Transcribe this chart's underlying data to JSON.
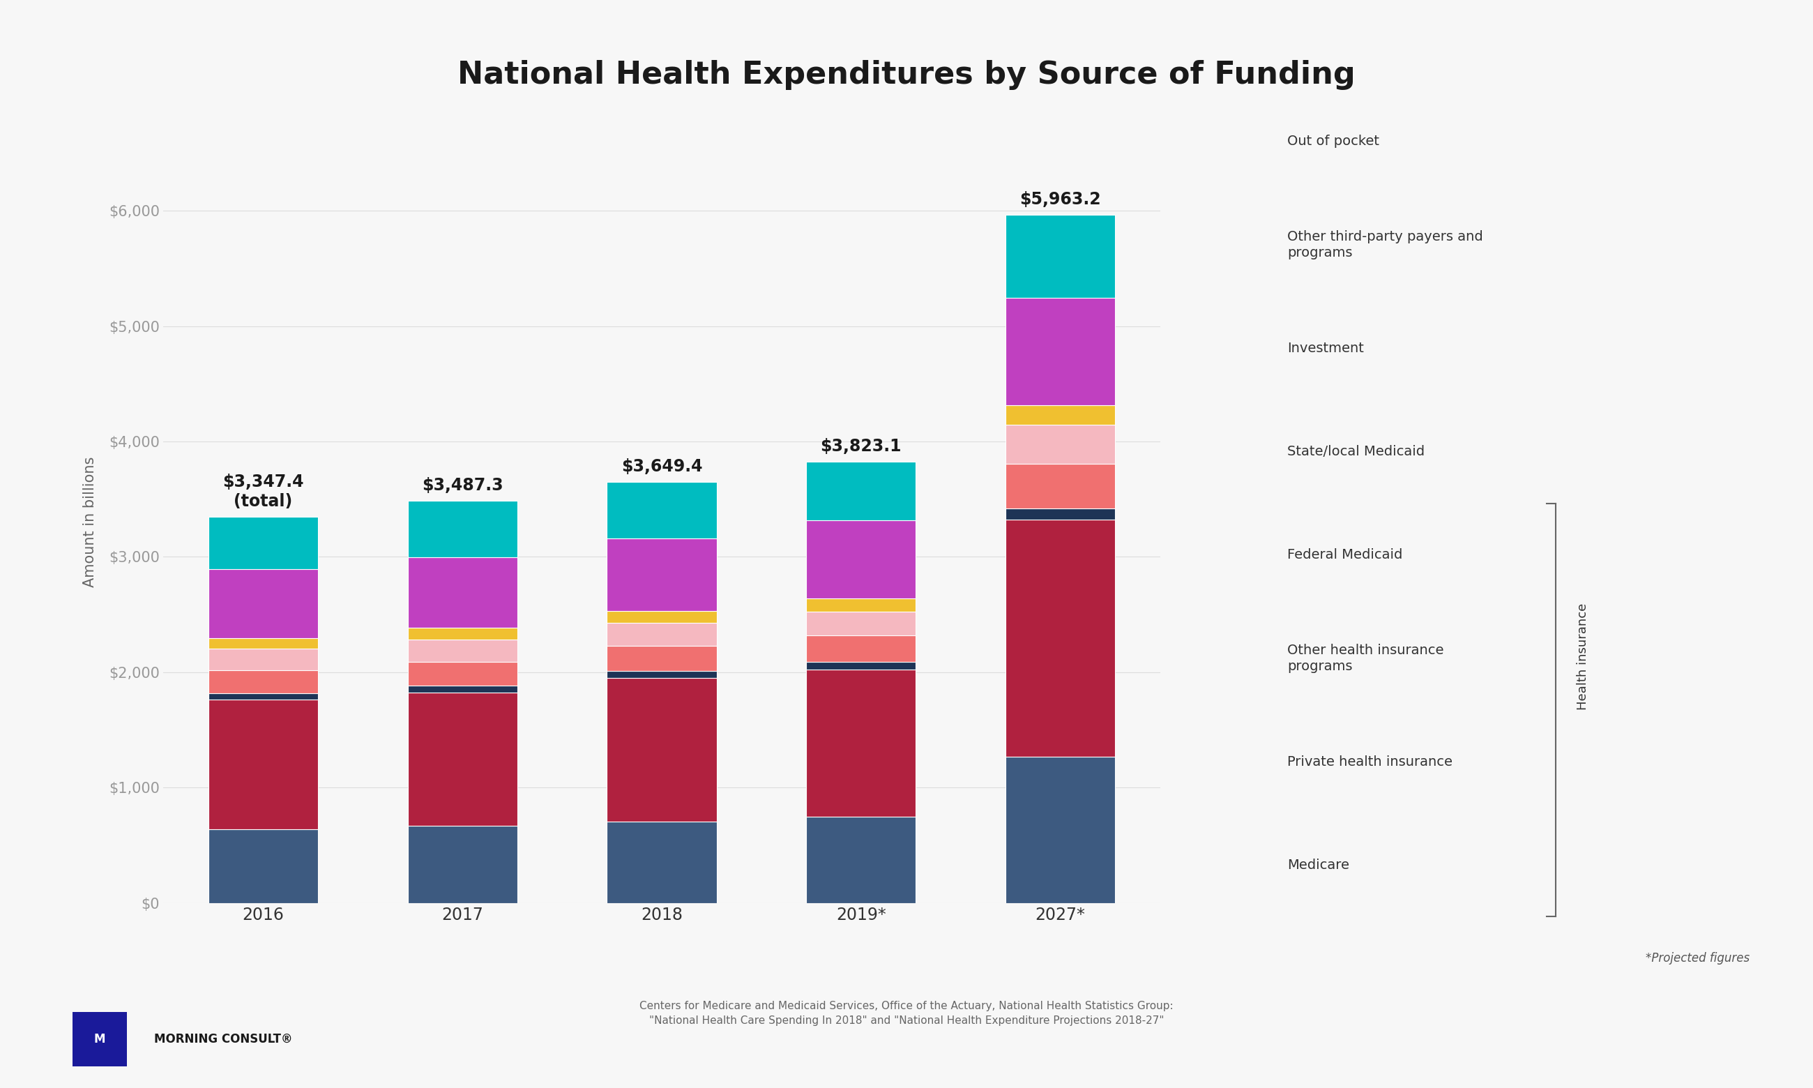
{
  "title": "National Health Expenditures by Source of Funding",
  "ylabel": "Amount in billions",
  "categories": [
    "2016",
    "2017",
    "2018",
    "2019*",
    "2027*"
  ],
  "totals": [
    "$3,347.4\n(total)",
    "$3,487.3",
    "$3,649.4",
    "$3,823.1",
    "$5,963.2"
  ],
  "background_color": "#f7f7f7",
  "plot_bg_color": "#f7f7f7",
  "segments": [
    {
      "label": "Medicare",
      "color": "#3d5a80",
      "values": [
        640,
        670,
        705,
        750,
        1270
      ]
    },
    {
      "label": "Private health insurance",
      "color": "#b0213f",
      "values": [
        1123,
        1155,
        1243,
        1274,
        2050
      ]
    },
    {
      "label": "Other health insurance\nprograms",
      "color": "#1e3456",
      "values": [
        55,
        60,
        62,
        65,
        100
      ]
    },
    {
      "label": "Federal Medicaid",
      "color": "#f07070",
      "values": [
        200,
        208,
        218,
        228,
        385
      ]
    },
    {
      "label": "State/local Medicaid",
      "color": "#f5b8c0",
      "values": [
        185,
        193,
        200,
        210,
        340
      ]
    },
    {
      "label": "Investment",
      "color": "#f0c030",
      "values": [
        95,
        100,
        105,
        110,
        170
      ]
    },
    {
      "label": "Other third-party payers and\nprograms",
      "color": "#c040c0",
      "values": [
        597,
        613,
        629,
        679,
        930
      ]
    },
    {
      "label": "Out of pocket",
      "color": "#00bcc0",
      "values": [
        452,
        488,
        487,
        507,
        718
      ]
    }
  ],
  "yticks": [
    0,
    1000,
    2000,
    3000,
    4000,
    5000,
    6000
  ],
  "ytick_labels": [
    "$0",
    "$1,000",
    "$2,000",
    "$3,000",
    "$4,000",
    "$5,000",
    "$6,000"
  ],
  "ylim": [
    0,
    6600
  ],
  "footer_note": "*Projected figures",
  "source_text": "Centers for Medicare and Medicaid Services, Office of the Actuary, National Health Statistics Group:\n\"National Health Care Spending In 2018\" and \"National Health Expenditure Projections 2018-27\"",
  "logo_text": "MORNING CONSULT®",
  "title_fontsize": 32,
  "label_fontsize": 15,
  "tick_fontsize": 15,
  "legend_fontsize": 14,
  "total_fontsize": 17
}
